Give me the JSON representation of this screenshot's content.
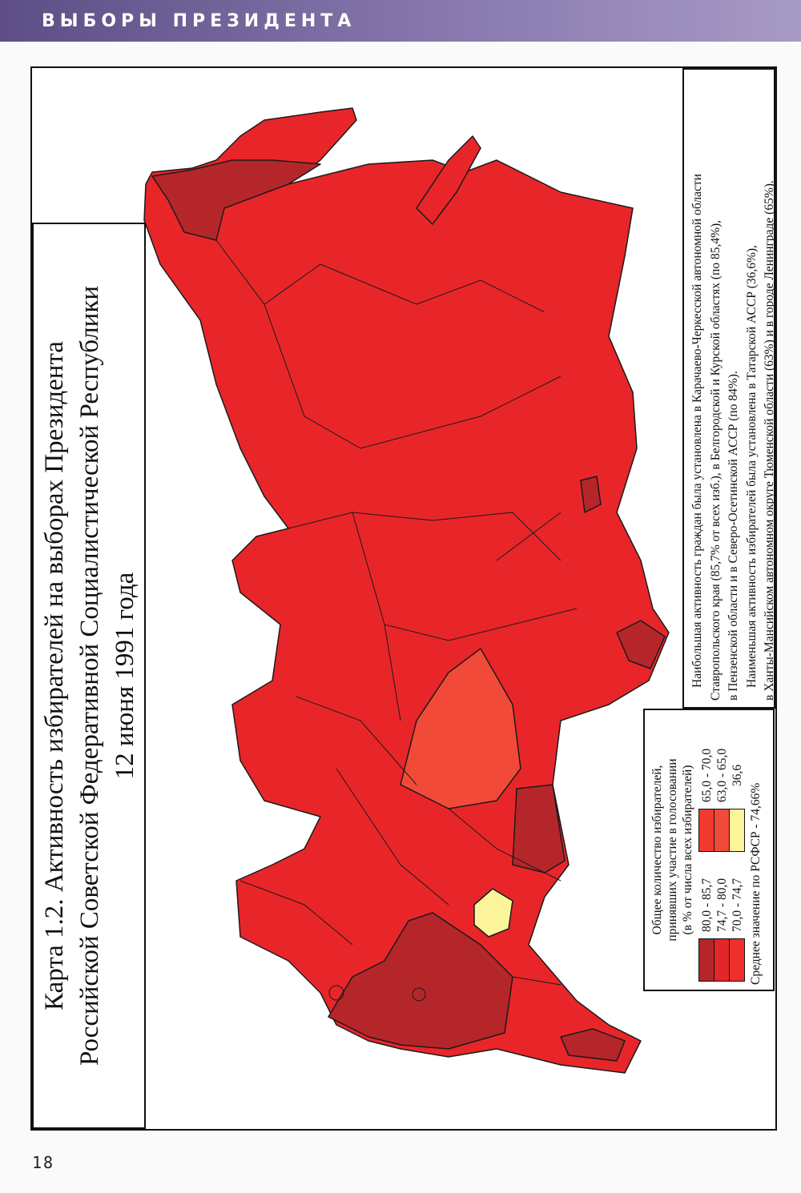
{
  "header": {
    "title": "ВЫБОРЫ ПРЕЗИДЕНТА"
  },
  "page_number": "18",
  "map_title": {
    "line1": "Карта 1.2. Активность избирателей на выборах Президента",
    "line2": "Российской Советской Федеративной Социалистической Республики",
    "line3": "12 июня 1991 года"
  },
  "legend": {
    "heading1": "Общее количество избирателей,",
    "heading2": "принявших участие в голосовании",
    "heading3": "(в % от числа всех избирателей)",
    "classes": [
      {
        "label": "80,0 - 85,7",
        "color": "#b5262b"
      },
      {
        "label": "74,7 - 80,0",
        "color": "#e3262a"
      },
      {
        "label": "70,0 - 74,7",
        "color": "#ee2f2c"
      },
      {
        "label": "65,0 - 70,0",
        "color": "#f23a2f"
      },
      {
        "label": "63,0 - 65,0",
        "color": "#f24a38"
      },
      {
        "label": "36,6",
        "color": "#fbf49a"
      }
    ],
    "average": "Среднее значение по РСФСР - 74,66%"
  },
  "notes": {
    "line1": "Наибольшая активность граждан была установлена в Карачаево-Черкесской автономной области",
    "line2": "Ставропольского края (85,7% от всех изб.), в Белгородской и Курской областях (по 85,4%),",
    "line3": "в Пензенской области и в Северо-Осетинской АССР (по 84%).",
    "line4": "Наименьшая активность избирателей была установлена в Татарской АССР (36,6%),",
    "line5": "в Ханты-Мансийском автономном округе Тюменской области (63%) и в городе Ленинграде (65%)."
  },
  "colors": {
    "base_region": "#e8262a",
    "border": "#1a1a1a",
    "header_band": "#6f6299"
  }
}
